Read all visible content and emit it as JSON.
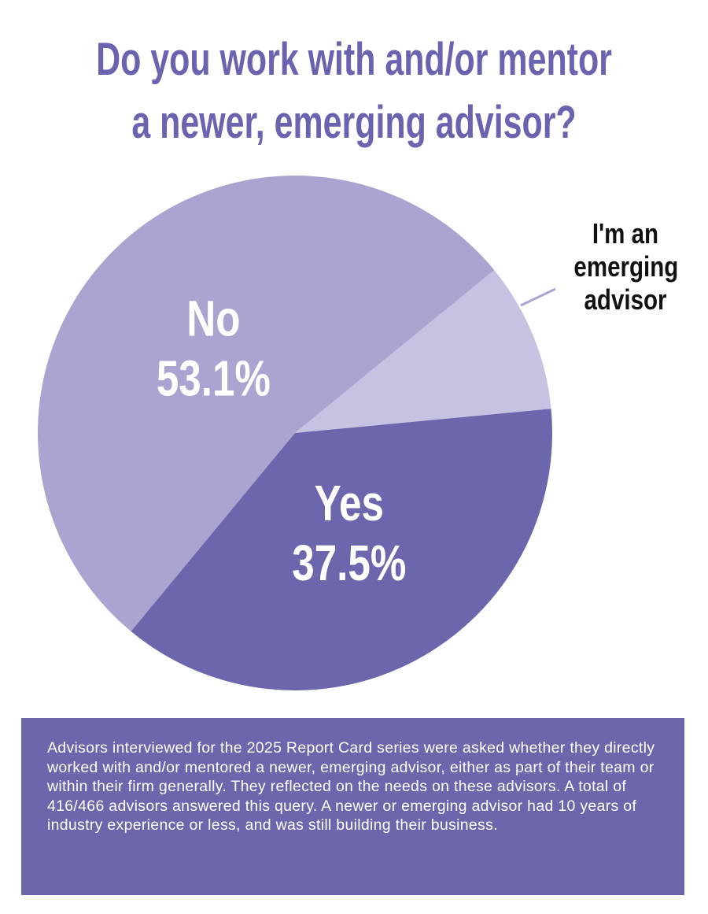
{
  "chart_data": {
    "type": "pie",
    "title": [
      "Do you work with and/or mentor",
      "a newer, emerging advisor?"
    ],
    "categories": [
      "No",
      "I'm an emerging advisor",
      "Yes"
    ],
    "values": [
      53.1,
      9.4,
      37.5
    ],
    "value_labels": [
      "53.1%",
      null,
      "37.5%"
    ],
    "colors": [
      "#aaa5d0",
      "#c6c3e2",
      "#6c66ad"
    ],
    "note": "Advisors interviewed for the 2025 Report Card series were asked whether they directly worked with and/or mentored a newer, emerging advisor, either as part of their team or within their firm generally. They reflected on the needs on these advisors. A total of 416/466 advisors answered this query. A newer or emerging advisor had 10 years of industry experience or less, and was still building their business."
  }
}
